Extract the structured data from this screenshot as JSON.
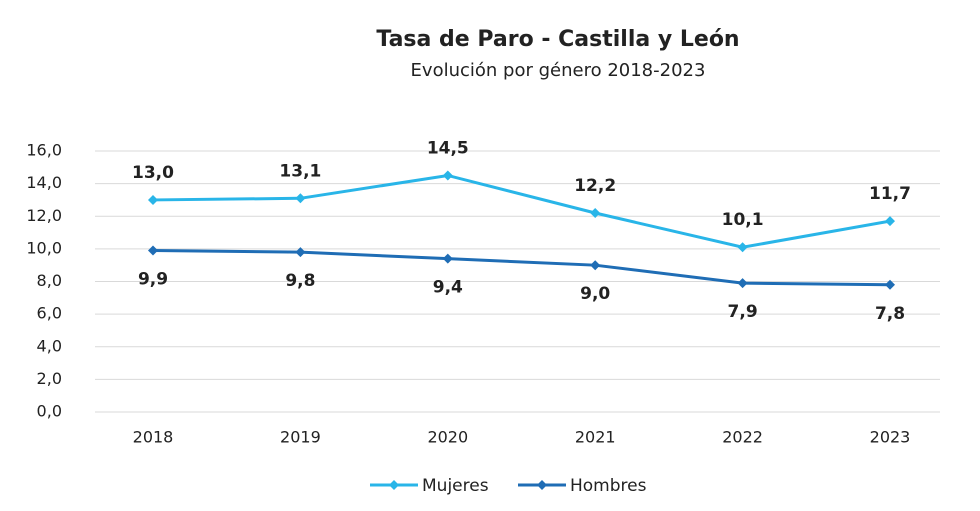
{
  "chart_data": {
    "type": "line",
    "title": "Tasa de Paro - Castilla y León",
    "subtitle": "Evolución por género 2018-2023",
    "categories": [
      "2018",
      "2019",
      "2020",
      "2021",
      "2022",
      "2023"
    ],
    "series": [
      {
        "name": "Mujeres",
        "color": "#29b5e8",
        "values": [
          13.0,
          13.1,
          14.5,
          12.2,
          10.1,
          11.7
        ],
        "value_labels": [
          "13,0",
          "13,1",
          "14,5",
          "12,2",
          "10,1",
          "11,7"
        ]
      },
      {
        "name": "Hombres",
        "color": "#1f6db5",
        "values": [
          9.9,
          9.8,
          9.4,
          9.0,
          7.9,
          7.8
        ],
        "value_labels": [
          "9,9",
          "9,8",
          "9,4",
          "9,0",
          "7,9",
          "7,8"
        ]
      }
    ],
    "ylim": [
      0,
      16
    ],
    "yticks": [
      {
        "value": 0,
        "label": "0,0"
      },
      {
        "value": 2,
        "label": "2,0"
      },
      {
        "value": 4,
        "label": "4,0"
      },
      {
        "value": 6,
        "label": "6,0"
      },
      {
        "value": 8,
        "label": "8,0"
      },
      {
        "value": 10,
        "label": "10,0"
      },
      {
        "value": 12,
        "label": "12,0"
      },
      {
        "value": 14,
        "label": "14,0"
      },
      {
        "value": 16,
        "label": "16,0"
      }
    ],
    "grid": true,
    "legend": "bottom"
  }
}
